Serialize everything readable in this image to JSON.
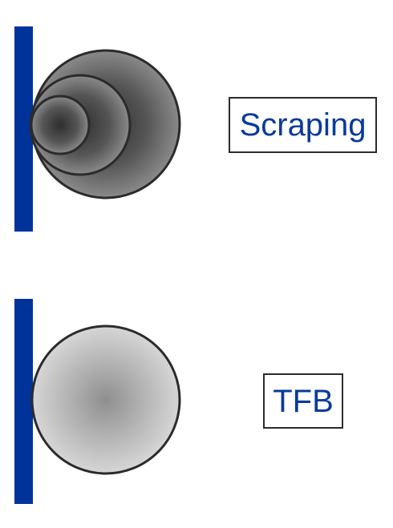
{
  "labels": {
    "scraping": "Scraping",
    "tfb": "TFB"
  },
  "colors": {
    "wall": "#00339a",
    "label_text": "#0a3a9a",
    "outline": "#2b2b2b",
    "scraping_particle_dark": "#2e2e2e",
    "scraping_particle_mid": "#555555",
    "scraping_particle_light": "#8a8a8a",
    "tfb_particle_center": "#8f8f8f",
    "tfb_particle_edge": "#d6d6d6"
  }
}
